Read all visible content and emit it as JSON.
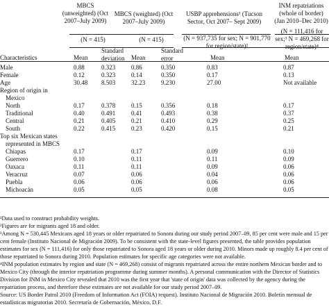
{
  "headers": {
    "mbcs_unweighted": "MBCS (unweighted) (Oct 2007–July 2009)",
    "mbcs_weighted": "MBCS (weighted) (Oct 2007–July 2009)",
    "usbp": "USBP apprehensions¹ (Tucson Sector, Oct 2007– Sept 2009)",
    "inm": "INM repatriations (whole of border) (Jan 2010–Dec 2010)",
    "n_mbcs_unweighted": "(N = 415)",
    "n_mbcs_weighted": "(N = 415)",
    "n_usbp": "(N = 937,735 for sex; N = 901,770 for region/state)²",
    "n_inm": "(N = 111,416 for sex;³ N = 469,268 for region/state)⁴",
    "characteristics": "Characteristics",
    "mean_1": "Mean",
    "sd": "Standard deviation",
    "mean_2": "Mean",
    "se": "Standard error",
    "mean_3": "Mean",
    "mean_4": "Mean"
  },
  "rows": [
    {
      "label": "Male",
      "v1": "0.88",
      "v2": "0.323",
      "v3": "0.86",
      "v4": "0.350",
      "v5": "0.83",
      "v6": "0.87"
    },
    {
      "label": "Female",
      "v1": "0.12",
      "v2": "0.323",
      "v3": "0.14",
      "v4": "0.350",
      "v5": "0.17",
      "v6": "0.13"
    },
    {
      "label": "Age",
      "v1": "30.48",
      "v2": "8.503",
      "v3": "32.23",
      "v4": "9.230",
      "v5": "27.00",
      "v6": "Not available"
    },
    {
      "label": "Region of origin in",
      "v1": "",
      "v2": "",
      "v3": "",
      "v4": "",
      "v5": "",
      "v6": ""
    },
    {
      "label": "Mexico",
      "indent": true,
      "v1": "",
      "v2": "",
      "v3": "",
      "v4": "",
      "v5": "",
      "v6": ""
    },
    {
      "label": "North",
      "indent": true,
      "v1": "0.17",
      "v2": "0.378",
      "v3": "0.15",
      "v4": "0.356",
      "v5": "0.18",
      "v6": "0.17"
    },
    {
      "label": "Traditional",
      "indent": true,
      "v1": "0.40",
      "v2": "0.491",
      "v3": "0.41",
      "v4": "0.493",
      "v5": "0.38",
      "v6": "0.37"
    },
    {
      "label": "Central",
      "indent": true,
      "v1": "0.21",
      "v2": "0.405",
      "v3": "0.21",
      "v4": "0.410",
      "v5": "0.29",
      "v6": "0.25"
    },
    {
      "label": "South",
      "indent": true,
      "v1": "0.22",
      "v2": "0.415",
      "v3": "0.23",
      "v4": "0.420",
      "v5": "0.15",
      "v6": "0.21"
    },
    {
      "label": "Top six Mexican states",
      "v1": "",
      "v2": "",
      "v3": "",
      "v4": "",
      "v5": "",
      "v6": ""
    },
    {
      "label": "represented in MBCS",
      "indent": true,
      "v1": "",
      "v2": "",
      "v3": "",
      "v4": "",
      "v5": "",
      "v6": ""
    },
    {
      "label": "Chiapas",
      "indent": true,
      "v1": "0.17",
      "v2": "",
      "v3": "0.17",
      "v4": "",
      "v5": "0.09",
      "v6": "0.10"
    },
    {
      "label": "Guerrero",
      "indent": true,
      "v1": "0.10",
      "v2": "",
      "v3": "0.11",
      "v4": "",
      "v5": "0.11",
      "v6": "0.09"
    },
    {
      "label": "Oaxaca",
      "indent": true,
      "v1": "0.11",
      "v2": "",
      "v3": "0.11",
      "v4": "",
      "v5": "0.09",
      "v6": "0.06"
    },
    {
      "label": "Veracruz",
      "indent": true,
      "v1": "0.07",
      "v2": "",
      "v3": "0.06",
      "v4": "",
      "v5": "0.04",
      "v6": "0.06"
    },
    {
      "label": "Puebla",
      "indent": true,
      "v1": "0.06",
      "v2": "",
      "v3": "0.06",
      "v4": "",
      "v5": "0.06",
      "v6": "0.06"
    },
    {
      "label": "Michoacán",
      "indent": true,
      "v1": "0.05",
      "v2": "",
      "v3": "0.05",
      "v4": "",
      "v5": "0.08",
      "v6": "0.05"
    }
  ],
  "notes": [
    "¹Data used to construct probability weights.",
    "²Figures are for migrants aged 18 and older.",
    "³Among N = 530,445 Mexicans aged 18 years or older repatriated to Sonora during our study period 2007–09, 85 per cent were male and 15 per cent female (Instituto Nacional de Migración 2009). To be consistent with the state-level figures presented, the table provides population estimates for sex (N = 111,416) for only those repatriated to Sonora aged 18 years or older during 2010. Minors made up roughly 8.4 per cent of those repatriated to Sonora during 2010. Population estimates for specific age categories were not available.",
    "⁴INM population estimates by region and state (N = 469,268) consist of migrants repatriated across the entire northern Mexican border and to Mexico City (through the interior repatriation programme during summer months). A personal communication with the Director of Statistics Division for INM in Mexico City revealed that 2010 was the first year that 'state of origin' data was collected by the agency during the repatriation process, and therefore these estimates are not available for our study period 2007–09.",
    "Source: US Border Patrol 2010 (Freedom of Information Act (FOIA) request). Instituto Nacional de Migración 2010. Boletín mensual de estadísticas migratorias 2010. Secretaría de Gobernación, México, D.F."
  ]
}
